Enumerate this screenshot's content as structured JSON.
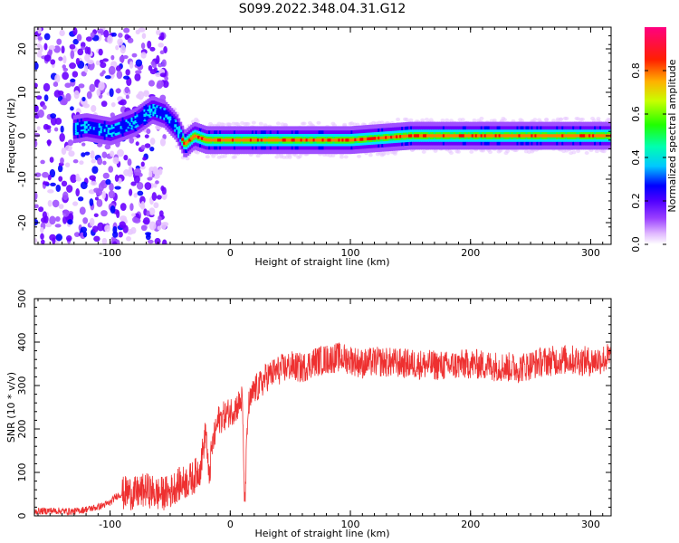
{
  "figure_title": "S099.2022.348.04.31.G12",
  "colors": {
    "snr_line": "#ee3030",
    "colormap": [
      "#ffffff",
      "#e8c8ff",
      "#a050ff",
      "#6a00ff",
      "#0000ff",
      "#00e0ff",
      "#00ff60",
      "#40ff00",
      "#ffff00",
      "#ff8000",
      "#ff0000",
      "#ff0080"
    ]
  },
  "chart_data": [
    {
      "type": "heatmap",
      "title": "",
      "xlabel": "Height of straight line (km)",
      "ylabel": "Frequency (Hz)",
      "xlim": [
        -163,
        317
      ],
      "ylim": [
        -25,
        25
      ],
      "x_ticks": [
        -100,
        0,
        100,
        200,
        300
      ],
      "y_ticks": [
        -20,
        -10,
        0,
        10,
        20
      ],
      "colorbar": {
        "label": "Normalized spectral amplitude",
        "range": [
          0,
          1
        ],
        "ticks": [
          0.0,
          0.2,
          0.4,
          0.6,
          0.8
        ]
      },
      "description_points": {
        "main_band_frequency_hz": [
          [
            -160,
            0
          ],
          [
            -120,
            2
          ],
          [
            -100,
            1
          ],
          [
            -80,
            3
          ],
          [
            -65,
            6
          ],
          [
            -55,
            5
          ],
          [
            -45,
            2
          ],
          [
            -38,
            -2
          ],
          [
            -30,
            0
          ],
          [
            -20,
            -1
          ],
          [
            0,
            -1
          ],
          [
            100,
            -1
          ],
          [
            150,
            0
          ],
          [
            200,
            0
          ],
          [
            250,
            0
          ],
          [
            300,
            0
          ],
          [
            317,
            0
          ]
        ]
      }
    },
    {
      "type": "line",
      "title": "",
      "xlabel": "Height of straight line (km)",
      "ylabel": "SNR (10 * v/v)",
      "xlim": [
        -163,
        317
      ],
      "ylim": [
        0,
        500
      ],
      "x_ticks": [
        -100,
        0,
        100,
        200,
        300
      ],
      "y_ticks": [
        0,
        100,
        200,
        300,
        400,
        500
      ],
      "series": [
        {
          "name": "",
          "x": [
            -163,
            -150,
            -130,
            -110,
            -100,
            -95,
            -85,
            -80,
            -70,
            -60,
            -50,
            -45,
            -35,
            -30,
            -25,
            -20,
            -18,
            -15,
            -10,
            -5,
            0,
            5,
            8,
            10,
            12,
            15,
            20,
            25,
            30,
            40,
            50,
            60,
            70,
            80,
            90,
            100,
            110,
            120,
            150,
            180,
            200,
            220,
            240,
            260,
            280,
            300,
            317
          ],
          "y": [
            10,
            12,
            10,
            20,
            30,
            45,
            55,
            50,
            60,
            50,
            55,
            70,
            80,
            90,
            110,
            200,
            80,
            160,
            220,
            230,
            240,
            250,
            260,
            270,
            30,
            250,
            290,
            300,
            320,
            335,
            345,
            340,
            355,
            360,
            365,
            360,
            350,
            355,
            350,
            345,
            350,
            345,
            340,
            355,
            360,
            355,
            365
          ]
        }
      ]
    }
  ]
}
